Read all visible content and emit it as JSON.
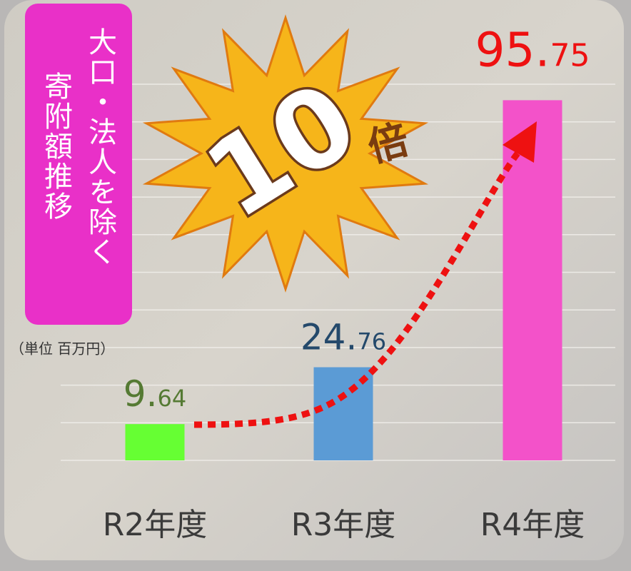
{
  "chart_data": {
    "type": "bar",
    "title": "大口・法人を除く",
    "subtitle": "寄附額推移",
    "unit_label": "（単位 百万円）",
    "annotation": {
      "number": "10",
      "suffix": "倍"
    },
    "categories": [
      "R2年度",
      "R3年度",
      "R4年度"
    ],
    "values": [
      9.64,
      24.76,
      95.75
    ],
    "value_labels": [
      "9.64",
      "24.76",
      "95.75"
    ],
    "colors": [
      "#66ff33",
      "#5b9bd5",
      "#f352c9"
    ],
    "label_colors": [
      "#557a33",
      "#24496b",
      "#ee1111"
    ],
    "ylim": [
      0,
      100
    ],
    "yticks": [
      0,
      10,
      20,
      30,
      40,
      50,
      60,
      70,
      80,
      90,
      100
    ],
    "grid": true
  }
}
